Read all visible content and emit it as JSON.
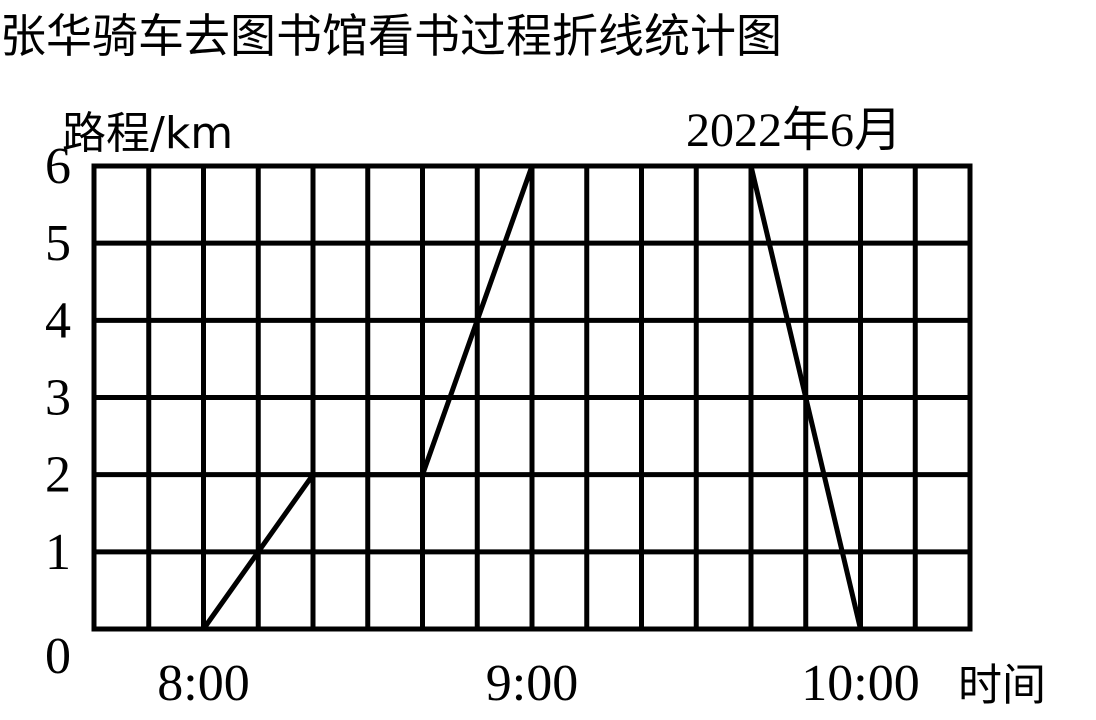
{
  "chart_data": {
    "type": "line",
    "title": "张华骑车去图书馆看书过程折线统计图",
    "subtitle": "2022年6月",
    "ylabel": "路程/km",
    "xlabel": "时间",
    "x_tick_labels": [
      "8:00",
      "9:00",
      "10:00"
    ],
    "y_ticks": [
      0,
      1,
      2,
      3,
      4,
      5,
      6
    ],
    "y_tick_labels": [
      "0",
      "1",
      "2",
      "3",
      "4",
      "5",
      "6"
    ],
    "xlim": [
      "7:40",
      "10:20"
    ],
    "ylim": [
      0,
      6
    ],
    "grid": true,
    "series": [
      {
        "x": [
          "8:00",
          "8:20",
          "8:40",
          "9:00",
          "9:40",
          "10:00"
        ],
        "y": [
          0,
          2,
          2,
          6,
          6,
          0
        ]
      }
    ]
  }
}
